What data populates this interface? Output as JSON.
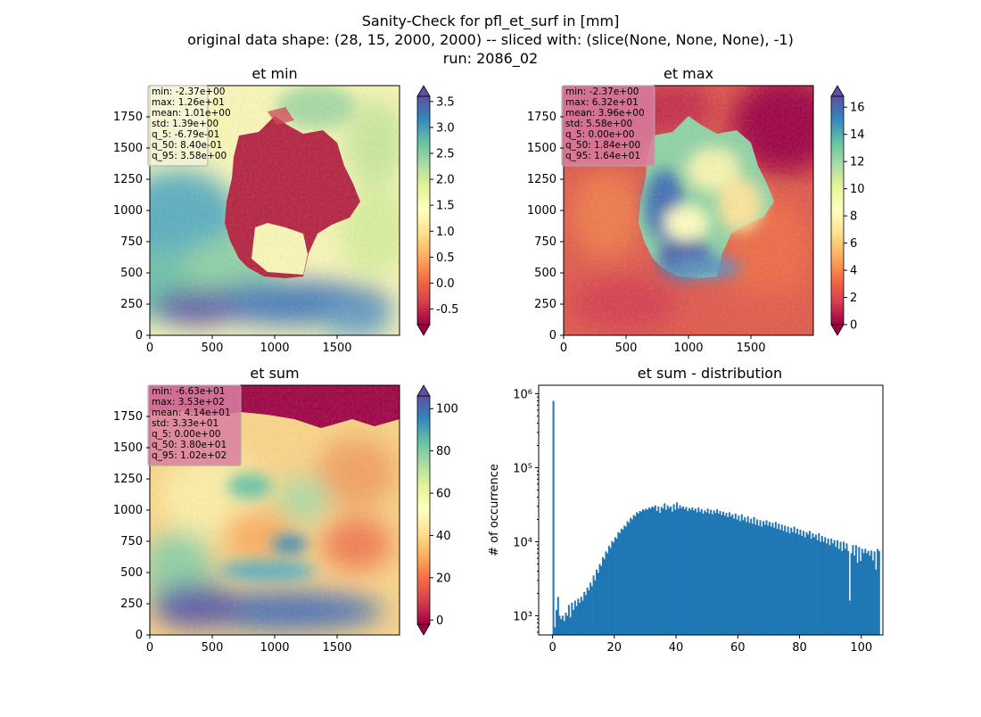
{
  "figure": {
    "suptitle": [
      "Sanity-Check for pfl_et_surf in [mm]",
      "original data shape: (28, 15, 2000, 2000) -- sliced with: (slice(None, None, None), -1)",
      "run: 2086_02"
    ]
  },
  "chart_data": [
    {
      "type": "heatmap",
      "title": "et min",
      "xlim": [
        0,
        2000
      ],
      "ylim": [
        0,
        2000
      ],
      "xticks": [
        "0",
        "500",
        "1000",
        "1500"
      ],
      "yticks": [
        "0",
        "250",
        "500",
        "750",
        "1000",
        "1250",
        "1500",
        "1750"
      ],
      "colormap": "Spectral",
      "colorbar": {
        "min": -0.8,
        "max": 3.6,
        "ticks": [
          "-0.5",
          "0.0",
          "0.5",
          "1.0",
          "1.5",
          "2.0",
          "2.5",
          "3.0",
          "3.5"
        ],
        "extend": "both"
      },
      "stats": [
        "min: -2.37e+00",
        "max: 1.26e+01",
        "mean: 1.01e+00",
        "std: 1.39e+00",
        "q_5: -6.79e-01",
        "q_50: 8.40e-01",
        "q_95: 3.58e+00"
      ],
      "stats_box_color": "#f5f5dc"
    },
    {
      "type": "heatmap",
      "title": "et max",
      "xlim": [
        0,
        2000
      ],
      "ylim": [
        0,
        2000
      ],
      "xticks": [
        "0",
        "500",
        "1000",
        "1500"
      ],
      "yticks": [
        "0",
        "250",
        "500",
        "750",
        "1000",
        "1250",
        "1500",
        "1750"
      ],
      "colormap": "Spectral",
      "colorbar": {
        "min": 0,
        "max": 16.8,
        "ticks": [
          "0",
          "2",
          "4",
          "6",
          "8",
          "10",
          "12",
          "14",
          "16"
        ],
        "extend": "both"
      },
      "stats": [
        "min: -2.37e+00",
        "max: 6.32e+01",
        "mean: 3.96e+00",
        "std: 5.58e+00",
        "q_5: 0.00e+00",
        "q_50: 1.84e+00",
        "q_95: 1.64e+01"
      ],
      "stats_box_color": "#d97fa0"
    },
    {
      "type": "heatmap",
      "title": "et sum",
      "xlim": [
        0,
        2000
      ],
      "ylim": [
        0,
        2000
      ],
      "xticks": [
        "0",
        "500",
        "1000",
        "1500"
      ],
      "yticks": [
        "0",
        "250",
        "500",
        "750",
        "1000",
        "1250",
        "1500",
        "1750"
      ],
      "colormap": "Spectral",
      "colorbar": {
        "min": -2,
        "max": 106,
        "ticks": [
          "0",
          "20",
          "40",
          "60",
          "80",
          "100"
        ],
        "extend": "both"
      },
      "stats": [
        "min: -6.63e+01",
        "max: 3.53e+02",
        "mean: 4.14e+01",
        "std: 3.33e+01",
        "q_5: 0.00e+00",
        "q_50: 3.80e+01",
        "q_95: 1.02e+02"
      ],
      "stats_box_color": "#d97fa0"
    },
    {
      "type": "bar",
      "title": "et sum - distribution",
      "ylabel": "# of occurrence",
      "xlabel": "",
      "yscale": "log",
      "xlim": [
        -4.5,
        107
      ],
      "ylim": [
        550,
        1300000
      ],
      "xticks": [
        0,
        20,
        40,
        60,
        80,
        100
      ],
      "yticks": [
        {
          "value": 1000,
          "label": "10³"
        },
        {
          "value": 10000,
          "label": "10⁴"
        },
        {
          "value": 100000,
          "label": "10⁵"
        },
        {
          "value": 1000000,
          "label": "10⁶"
        }
      ],
      "bar_color": "#1f77b4",
      "bins": {
        "start": 0,
        "width": 0.5
      },
      "values": [
        800000,
        700,
        1200,
        1800,
        1000,
        900,
        1000,
        850,
        1100,
        1000,
        1400,
        950,
        1500,
        1200,
        1600,
        1350,
        1700,
        1500,
        1800,
        1600,
        2100,
        1900,
        2400,
        2200,
        2800,
        2500,
        3500,
        3000,
        4200,
        3800,
        5000,
        4700,
        6200,
        5800,
        7400,
        7000,
        8800,
        8200,
        10200,
        9800,
        11500,
        11000,
        13500,
        13000,
        15000,
        14500,
        16500,
        16000,
        19000,
        18000,
        21000,
        20000,
        23000,
        22000,
        25000,
        24000,
        26000,
        25500,
        27500,
        26500,
        28000,
        27000,
        29000,
        28000,
        30000,
        29000,
        31000,
        26000,
        30000,
        24500,
        29500,
        28000,
        33000,
        27000,
        31000,
        28500,
        30000,
        25500,
        32000,
        27000,
        34000,
        28000,
        31000,
        28500,
        30000,
        27500,
        29500,
        26000,
        28500,
        27000,
        29000,
        26500,
        28000,
        25000,
        29000,
        25500,
        27500,
        24000,
        26500,
        25000,
        28000,
        24000,
        27000,
        23500,
        26500,
        24500,
        27500,
        24000,
        26000,
        23000,
        25500,
        22500,
        24500,
        21500,
        25000,
        22000,
        23500,
        20500,
        24000,
        20000,
        22500,
        19000,
        23500,
        19500,
        21500,
        18500,
        22000,
        18000,
        20500,
        17500,
        21500,
        17000,
        20000,
        16500,
        19500,
        16000,
        19000,
        17000,
        19500,
        16500,
        18500,
        16000,
        18000,
        15500,
        18500,
        15000,
        17500,
        14500,
        17000,
        14000,
        16500,
        13500,
        16000,
        13000,
        15500,
        13500,
        16000,
        13000,
        15000,
        12500,
        14500,
        12000,
        14000,
        11500,
        13500,
        12500,
        14000,
        11000,
        13000,
        11500,
        12500,
        10500,
        13000,
        10000,
        12000,
        10000,
        11500,
        9500,
        11000,
        9000,
        11000,
        9500,
        10500,
        8500,
        10500,
        8000,
        10000,
        7500,
        10000,
        8000,
        9500,
        7500,
        1600,
        7000,
        9000,
        6500,
        9000,
        5200,
        8500,
        5500,
        8000,
        7000,
        8000,
        7000,
        7500,
        6500,
        7600,
        5600,
        7400,
        4200,
        8000,
        7500
      ]
    }
  ]
}
